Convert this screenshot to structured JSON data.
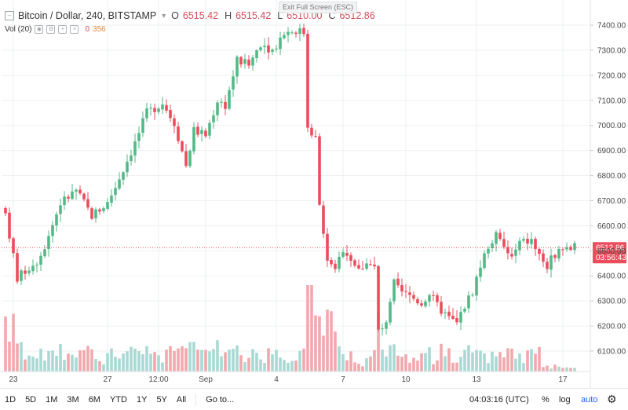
{
  "header": {
    "symbol": "Bitcoin / Dollar, 240, BITSTAMP",
    "ohlc": [
      {
        "key": "O",
        "value": "6515.42"
      },
      {
        "key": "H",
        "value": "6515.42"
      },
      {
        "key": "L",
        "value": "6510.00"
      },
      {
        "key": "C",
        "value": "6512.86"
      }
    ],
    "volume_label": "Vol (20)",
    "volume_value_1": "0",
    "volume_value_2": "356",
    "exit_fullscreen": "Exit Full Screen (ESC)"
  },
  "bottom_bar": {
    "ranges": [
      "1D",
      "5D",
      "1M",
      "3M",
      "6M",
      "YTD",
      "1Y",
      "5Y",
      "All"
    ],
    "goto": "Go to...",
    "clock": "04:03:16 (UTC)",
    "percent": "%",
    "log": "log",
    "auto": "auto"
  },
  "colors": {
    "up": "#53b987",
    "down": "#eb4d5c",
    "vol_up": "#a9d9d4",
    "vol_down": "#f2a8ad",
    "grid": "#eef0f2",
    "price_line": "#eb4d5c",
    "axis_text": "#4a4a4a"
  },
  "chart_data": {
    "type": "candlestick",
    "title": "Bitcoin / Dollar, 240, BITSTAMP",
    "xlabel": "",
    "ylabel": "",
    "ylim": [
      6020,
      7470
    ],
    "y_ticks": [
      6100,
      6200,
      6300,
      6400,
      6500,
      6600,
      6700,
      6800,
      6900,
      7000,
      7100,
      7200,
      7300,
      7400
    ],
    "y_tick_labels": [
      "6100.00",
      "6200.00",
      "6300.00",
      "6400.00",
      "6500.00",
      "6600.00",
      "6700.00",
      "6800.00",
      "6900.00",
      "7000.00",
      "7100.00",
      "7200.00",
      "7300.00",
      "7400.00"
    ],
    "x_ticks": [
      {
        "label": "23",
        "bar": 2
      },
      {
        "label": "27",
        "bar": 26
      },
      {
        "label": "12:00",
        "bar": 39
      },
      {
        "label": "Sep",
        "bar": 51
      },
      {
        "label": "4",
        "bar": 69
      },
      {
        "label": "7",
        "bar": 86
      },
      {
        "label": "10",
        "bar": 102
      },
      {
        "label": "13",
        "bar": 120
      },
      {
        "label": "17",
        "bar": 142
      }
    ],
    "bar_count": 146,
    "last_price": "6512.86",
    "last_price_value": 6512.86,
    "countdown": "03:56:43",
    "waypoints": [
      [
        0,
        6650
      ],
      [
        2,
        6480
      ],
      [
        3,
        6390
      ],
      [
        5,
        6420
      ],
      [
        8,
        6460
      ],
      [
        10,
        6520
      ],
      [
        14,
        6690
      ],
      [
        18,
        6740
      ],
      [
        22,
        6640
      ],
      [
        26,
        6690
      ],
      [
        29,
        6790
      ],
      [
        33,
        6930
      ],
      [
        36,
        7050
      ],
      [
        40,
        7090
      ],
      [
        43,
        7010
      ],
      [
        46,
        6840
      ],
      [
        48,
        6980
      ],
      [
        51,
        6960
      ],
      [
        54,
        7100
      ],
      [
        56,
        7080
      ],
      [
        59,
        7260
      ],
      [
        62,
        7240
      ],
      [
        65,
        7330
      ],
      [
        68,
        7300
      ],
      [
        71,
        7370
      ],
      [
        74,
        7380
      ],
      [
        76,
        7370
      ],
      [
        77,
        7000
      ],
      [
        79,
        6950
      ],
      [
        80,
        6700
      ],
      [
        82,
        6450
      ],
      [
        84,
        6420
      ],
      [
        86,
        6510
      ],
      [
        88,
        6470
      ],
      [
        90,
        6420
      ],
      [
        92,
        6460
      ],
      [
        94,
        6430
      ],
      [
        95,
        6180
      ],
      [
        97,
        6200
      ],
      [
        99,
        6370
      ],
      [
        101,
        6330
      ],
      [
        103,
        6320
      ],
      [
        106,
        6290
      ],
      [
        108,
        6330
      ],
      [
        110,
        6280
      ],
      [
        113,
        6230
      ],
      [
        115,
        6210
      ],
      [
        117,
        6280
      ],
      [
        119,
        6340
      ],
      [
        121,
        6440
      ],
      [
        123,
        6520
      ],
      [
        125,
        6560
      ],
      [
        127,
        6510
      ],
      [
        129,
        6470
      ],
      [
        131,
        6530
      ],
      [
        134,
        6540
      ],
      [
        136,
        6480
      ],
      [
        138,
        6440
      ],
      [
        140,
        6490
      ],
      [
        143,
        6512.86
      ]
    ]
  }
}
